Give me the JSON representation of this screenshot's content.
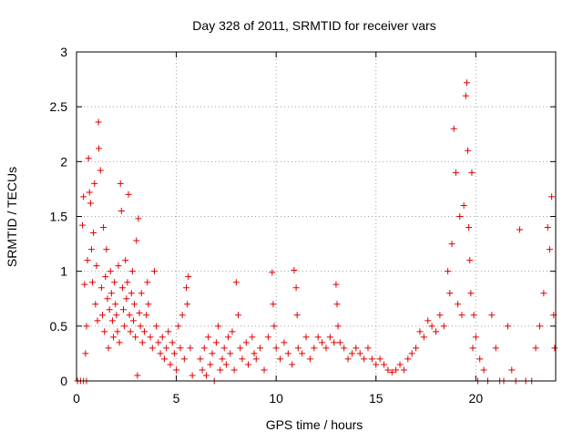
{
  "chart_data": {
    "type": "scatter",
    "title": "Day 328 of 2011, SRMTID for receiver vars",
    "xlabel": "GPS time / hours",
    "ylabel": "SRMTID / TECUs",
    "xlim": [
      0,
      24
    ],
    "ylim": [
      0,
      3
    ],
    "xticks": [
      0,
      5,
      10,
      15,
      20
    ],
    "yticks": [
      0,
      0.5,
      1,
      1.5,
      2,
      2.5,
      3
    ],
    "xtick_labels": [
      "0",
      "5",
      "10",
      "15",
      "20"
    ],
    "ytick_labels": [
      "0",
      "0.5",
      "1",
      "1.5",
      "2",
      "2.5",
      "3"
    ],
    "grid": true,
    "legend": "none",
    "marker": "+",
    "series": [
      {
        "name": "SRMTID",
        "color": "#e00000",
        "points": [
          [
            0.05,
            0.0
          ],
          [
            0.2,
            0.0
          ],
          [
            0.35,
            0.0
          ],
          [
            0.5,
            0.0
          ],
          [
            0.3,
            1.42
          ],
          [
            0.35,
            1.68
          ],
          [
            0.4,
            0.88
          ],
          [
            0.45,
            0.25
          ],
          [
            0.5,
            0.5
          ],
          [
            0.55,
            1.1
          ],
          [
            0.6,
            2.03
          ],
          [
            0.65,
            1.72
          ],
          [
            0.7,
            1.62
          ],
          [
            0.75,
            1.2
          ],
          [
            0.8,
            0.9
          ],
          [
            0.85,
            1.35
          ],
          [
            0.9,
            1.8
          ],
          [
            0.95,
            0.7
          ],
          [
            1.0,
            1.05
          ],
          [
            1.05,
            0.55
          ],
          [
            1.1,
            2.36
          ],
          [
            1.12,
            2.12
          ],
          [
            1.2,
            1.92
          ],
          [
            1.25,
            0.85
          ],
          [
            1.3,
            0.6
          ],
          [
            1.35,
            1.4
          ],
          [
            1.4,
            0.45
          ],
          [
            1.45,
            0.95
          ],
          [
            1.5,
            1.2
          ],
          [
            1.55,
            0.75
          ],
          [
            1.6,
            0.3
          ],
          [
            1.65,
            0.65
          ],
          [
            1.7,
            1.0
          ],
          [
            1.75,
            0.8
          ],
          [
            1.8,
            0.55
          ],
          [
            1.85,
            0.4
          ],
          [
            1.9,
            0.9
          ],
          [
            1.95,
            0.7
          ],
          [
            2.0,
            0.6
          ],
          [
            2.05,
            0.45
          ],
          [
            2.1,
            1.05
          ],
          [
            2.15,
            0.35
          ],
          [
            2.2,
            1.8
          ],
          [
            2.25,
            1.55
          ],
          [
            2.3,
            0.85
          ],
          [
            2.35,
            0.65
          ],
          [
            2.4,
            0.5
          ],
          [
            2.45,
            1.1
          ],
          [
            2.5,
            0.75
          ],
          [
            2.55,
            0.9
          ],
          [
            2.6,
            1.7
          ],
          [
            2.65,
            0.6
          ],
          [
            2.7,
            0.45
          ],
          [
            2.75,
            0.8
          ],
          [
            2.8,
            1.0
          ],
          [
            2.85,
            0.55
          ],
          [
            2.9,
            0.7
          ],
          [
            2.95,
            0.4
          ],
          [
            3.0,
            1.28
          ],
          [
            3.05,
            0.05
          ],
          [
            3.1,
            1.48
          ],
          [
            3.15,
            0.62
          ],
          [
            3.2,
            0.5
          ],
          [
            3.25,
            0.8
          ],
          [
            3.3,
            0.35
          ],
          [
            3.4,
            0.45
          ],
          [
            3.5,
            0.6
          ],
          [
            3.55,
            0.9
          ],
          [
            3.6,
            0.7
          ],
          [
            3.7,
            0.4
          ],
          [
            3.8,
            0.3
          ],
          [
            3.9,
            1.0
          ],
          [
            4.0,
            0.5
          ],
          [
            4.1,
            0.35
          ],
          [
            4.2,
            0.25
          ],
          [
            4.3,
            0.4
          ],
          [
            4.4,
            0.2
          ],
          [
            4.5,
            0.3
          ],
          [
            4.6,
            0.45
          ],
          [
            4.7,
            0.15
          ],
          [
            4.8,
            0.35
          ],
          [
            4.9,
            0.25
          ],
          [
            5.0,
            0.1
          ],
          [
            5.1,
            0.5
          ],
          [
            5.2,
            0.3
          ],
          [
            5.3,
            0.6
          ],
          [
            5.4,
            0.2
          ],
          [
            5.5,
            0.85
          ],
          [
            5.55,
            0.7
          ],
          [
            5.6,
            0.95
          ],
          [
            5.7,
            0.3
          ],
          [
            5.8,
            0.05
          ],
          [
            6.2,
            0.2
          ],
          [
            6.3,
            0.1
          ],
          [
            6.4,
            0.3
          ],
          [
            6.5,
            0.05
          ],
          [
            6.6,
            0.4
          ],
          [
            6.7,
            0.15
          ],
          [
            6.8,
            0.25
          ],
          [
            6.9,
            0.0
          ],
          [
            7.0,
            0.35
          ],
          [
            7.1,
            0.5
          ],
          [
            7.2,
            0.1
          ],
          [
            7.3,
            0.2
          ],
          [
            7.4,
            0.3
          ],
          [
            7.5,
            0.15
          ],
          [
            7.6,
            0.4
          ],
          [
            7.7,
            0.25
          ],
          [
            7.8,
            0.45
          ],
          [
            7.9,
            0.1
          ],
          [
            8.0,
            0.9
          ],
          [
            8.1,
            0.6
          ],
          [
            8.2,
            0.3
          ],
          [
            8.3,
            0.2
          ],
          [
            8.5,
            0.35
          ],
          [
            8.6,
            0.15
          ],
          [
            8.8,
            0.4
          ],
          [
            8.9,
            0.25
          ],
          [
            9.0,
            0.2
          ],
          [
            9.2,
            0.3
          ],
          [
            9.4,
            0.1
          ],
          [
            9.6,
            0.4
          ],
          [
            9.8,
            0.99
          ],
          [
            9.85,
            0.7
          ],
          [
            9.9,
            0.5
          ],
          [
            10.0,
            0.3
          ],
          [
            10.2,
            0.2
          ],
          [
            10.4,
            0.35
          ],
          [
            10.6,
            0.25
          ],
          [
            10.8,
            0.15
          ],
          [
            10.9,
            1.01
          ],
          [
            11.0,
            0.85
          ],
          [
            11.05,
            0.6
          ],
          [
            11.1,
            0.3
          ],
          [
            11.3,
            0.25
          ],
          [
            11.5,
            0.4
          ],
          [
            11.7,
            0.2
          ],
          [
            11.9,
            0.3
          ],
          [
            12.1,
            0.4
          ],
          [
            12.3,
            0.35
          ],
          [
            12.5,
            0.3
          ],
          [
            12.7,
            0.4
          ],
          [
            12.9,
            0.35
          ],
          [
            13.0,
            0.88
          ],
          [
            13.05,
            0.7
          ],
          [
            13.1,
            0.5
          ],
          [
            13.2,
            0.35
          ],
          [
            13.4,
            0.3
          ],
          [
            13.6,
            0.2
          ],
          [
            13.8,
            0.25
          ],
          [
            14.0,
            0.3
          ],
          [
            14.2,
            0.25
          ],
          [
            14.4,
            0.2
          ],
          [
            14.6,
            0.3
          ],
          [
            14.8,
            0.2
          ],
          [
            15.0,
            0.15
          ],
          [
            15.2,
            0.2
          ],
          [
            15.4,
            0.15
          ],
          [
            15.6,
            0.1
          ],
          [
            15.8,
            0.08
          ],
          [
            16.0,
            0.1
          ],
          [
            16.2,
            0.15
          ],
          [
            16.4,
            0.1
          ],
          [
            16.6,
            0.2
          ],
          [
            16.8,
            0.25
          ],
          [
            17.0,
            0.3
          ],
          [
            17.2,
            0.45
          ],
          [
            17.4,
            0.4
          ],
          [
            17.6,
            0.55
          ],
          [
            17.8,
            0.5
          ],
          [
            18.0,
            0.45
          ],
          [
            18.2,
            0.6
          ],
          [
            18.4,
            0.5
          ],
          [
            18.6,
            1.0
          ],
          [
            18.7,
            0.8
          ],
          [
            18.8,
            1.25
          ],
          [
            18.9,
            2.3
          ],
          [
            19.0,
            1.9
          ],
          [
            19.1,
            0.7
          ],
          [
            19.2,
            1.5
          ],
          [
            19.3,
            0.6
          ],
          [
            19.4,
            1.6
          ],
          [
            19.5,
            2.6
          ],
          [
            19.55,
            2.72
          ],
          [
            19.6,
            2.1
          ],
          [
            19.65,
            1.4
          ],
          [
            19.7,
            1.1
          ],
          [
            19.75,
            0.8
          ],
          [
            19.8,
            1.9
          ],
          [
            19.85,
            0.3
          ],
          [
            19.9,
            0.6
          ],
          [
            20.0,
            0.4
          ],
          [
            20.1,
            0.0
          ],
          [
            20.2,
            0.2
          ],
          [
            20.4,
            0.1
          ],
          [
            20.6,
            0.0
          ],
          [
            20.8,
            0.6
          ],
          [
            21.0,
            0.3
          ],
          [
            21.2,
            0.0
          ],
          [
            21.4,
            0.0
          ],
          [
            21.6,
            0.5
          ],
          [
            21.8,
            0.1
          ],
          [
            22.0,
            0.0
          ],
          [
            22.2,
            1.38
          ],
          [
            22.5,
            0.0
          ],
          [
            22.8,
            0.0
          ],
          [
            23.0,
            0.3
          ],
          [
            23.2,
            0.5
          ],
          [
            23.4,
            0.8
          ],
          [
            23.6,
            1.4
          ],
          [
            23.7,
            1.2
          ],
          [
            23.8,
            1.68
          ],
          [
            23.9,
            0.6
          ],
          [
            23.95,
            0.3
          ]
        ]
      }
    ]
  }
}
